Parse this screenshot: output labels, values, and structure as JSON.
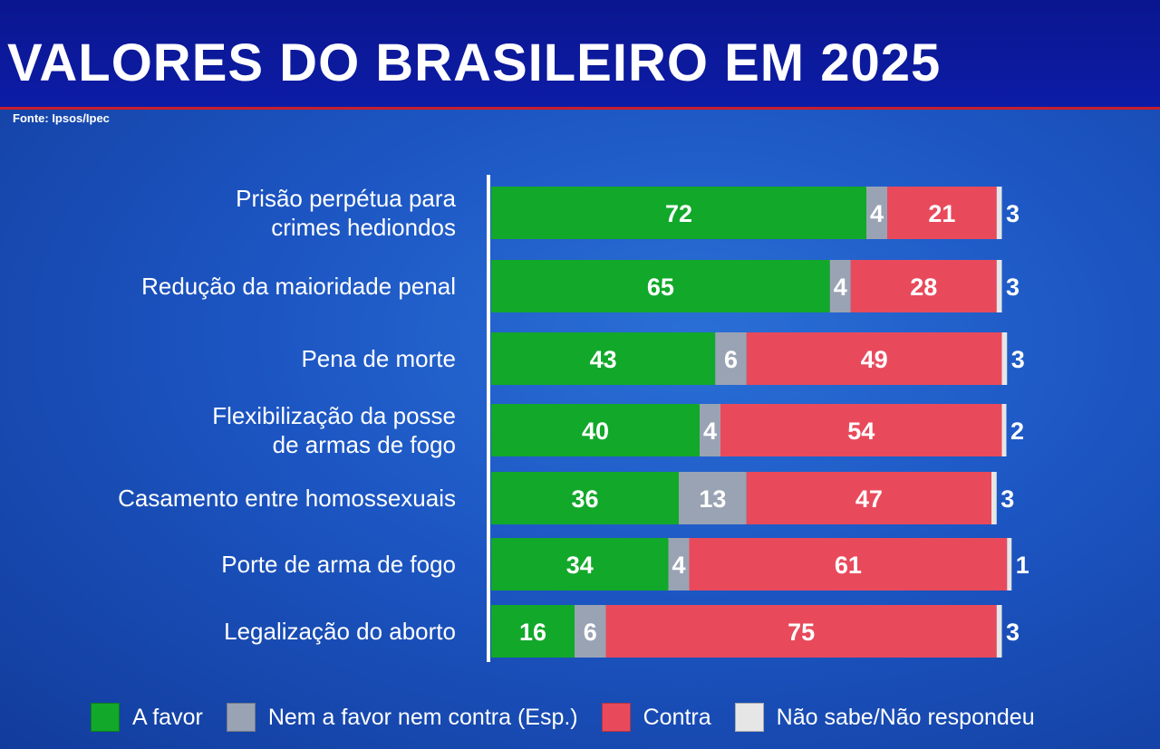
{
  "header": {
    "title": "VALORES DO BRASILEIRO EM 2025",
    "source": "Fonte: Ipsos/Ipec"
  },
  "chart_data": {
    "type": "bar",
    "orientation": "horizontal",
    "stacked": true,
    "categories": [
      "Prisão perpétua para\ncrimes hediondos",
      "Redução da maioridade penal",
      "Pena de morte",
      "Flexibilização da posse\nde armas de fogo",
      "Casamento entre homossexuais",
      "Porte de arma de fogo",
      "Legalização do aborto"
    ],
    "series": [
      {
        "name": "A favor",
        "color": "#12a82a",
        "values": [
          72,
          65,
          43,
          40,
          36,
          34,
          16
        ]
      },
      {
        "name": "Nem a favor nem contra (Esp.)",
        "color": "#9aa3b4",
        "values": [
          4,
          4,
          6,
          4,
          13,
          4,
          6
        ]
      },
      {
        "name": "Contra",
        "color": "#e84a5c",
        "values": [
          21,
          28,
          49,
          54,
          47,
          61,
          75
        ]
      },
      {
        "name": "Não sabe/Não respondeu",
        "color": "#e6e6e6",
        "values": [
          3,
          3,
          3,
          2,
          3,
          1,
          3
        ]
      }
    ],
    "legend_position": "bottom",
    "grid": false
  }
}
